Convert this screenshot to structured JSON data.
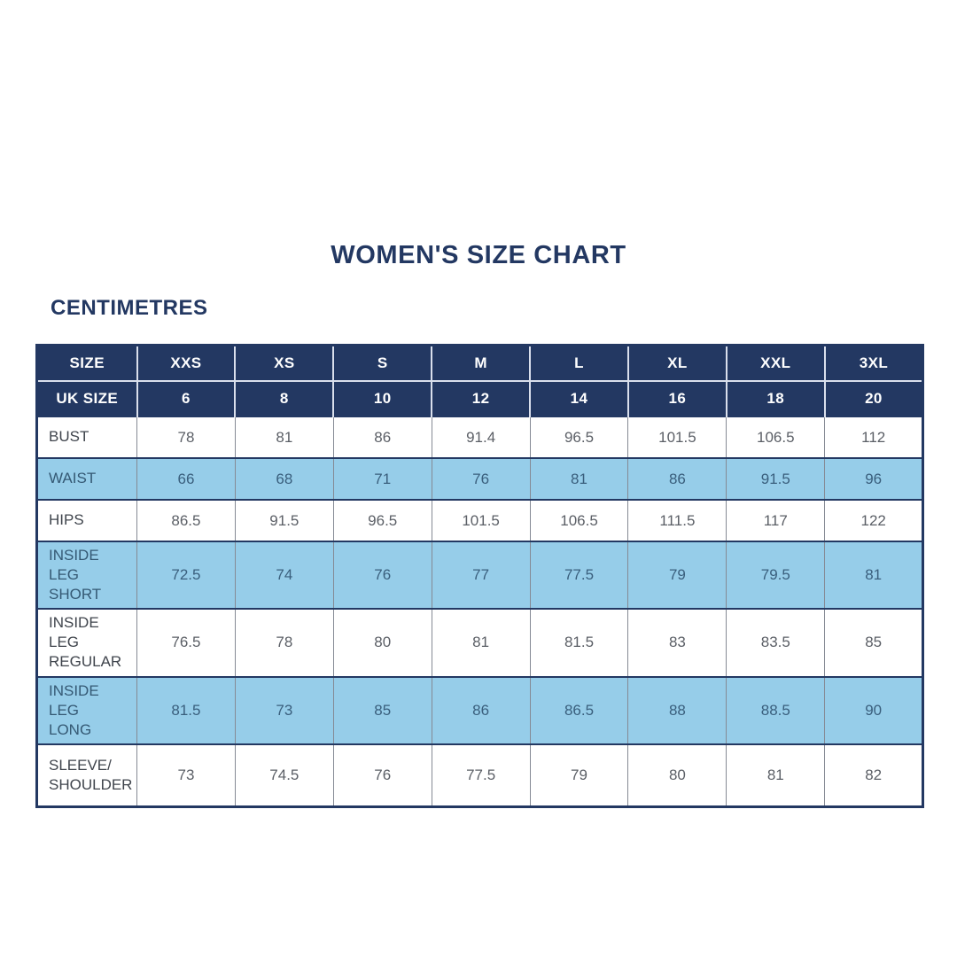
{
  "title": "WOMEN'S SIZE CHART",
  "unit_heading": "CENTIMETRES",
  "colors": {
    "header_navy": "#233862",
    "row_blue": "#96cde9",
    "row_white": "#ffffff",
    "header_text": "#ffffff",
    "body_text_gray": "#5b5f66",
    "blue_row_text": "#3a5f7d",
    "grid_line_gray": "#858a94",
    "header_divider_light": "#d9dfec"
  },
  "chart_data": {
    "type": "table",
    "title": "WOMEN'S SIZE CHART",
    "unit": "CENTIMETRES",
    "header": {
      "size_label": "SIZE",
      "sizes": [
        "XXS",
        "XS",
        "S",
        "M",
        "L",
        "XL",
        "XXL",
        "3XL"
      ],
      "uk_size_label": "UK SIZE",
      "uk_sizes": [
        "6",
        "8",
        "10",
        "12",
        "14",
        "16",
        "18",
        "20"
      ]
    },
    "rows": [
      {
        "label": "BUST",
        "values": [
          "78",
          "81",
          "86",
          "91.4",
          "96.5",
          "101.5",
          "106.5",
          "112"
        ]
      },
      {
        "label": "WAIST",
        "values": [
          "66",
          "68",
          "71",
          "76",
          "81",
          "86",
          "91.5",
          "96"
        ]
      },
      {
        "label": "HIPS",
        "values": [
          "86.5",
          "91.5",
          "96.5",
          "101.5",
          "106.5",
          "111.5",
          "117",
          "122"
        ]
      },
      {
        "label": "INSIDE LEG\nSHORT",
        "values": [
          "72.5",
          "74",
          "76",
          "77",
          "77.5",
          "79",
          "79.5",
          "81"
        ]
      },
      {
        "label": "INSIDE LEG\nREGULAR",
        "values": [
          "76.5",
          "78",
          "80",
          "81",
          "81.5",
          "83",
          "83.5",
          "85"
        ]
      },
      {
        "label": "INSIDE LEG\nLONG",
        "values": [
          "81.5",
          "73",
          "85",
          "86",
          "86.5",
          "88",
          "88.5",
          "90"
        ]
      },
      {
        "label": "SLEEVE/\nSHOULDER",
        "values": [
          "73",
          "74.5",
          "76",
          "77.5",
          "79",
          "80",
          "81",
          "82"
        ]
      }
    ]
  }
}
